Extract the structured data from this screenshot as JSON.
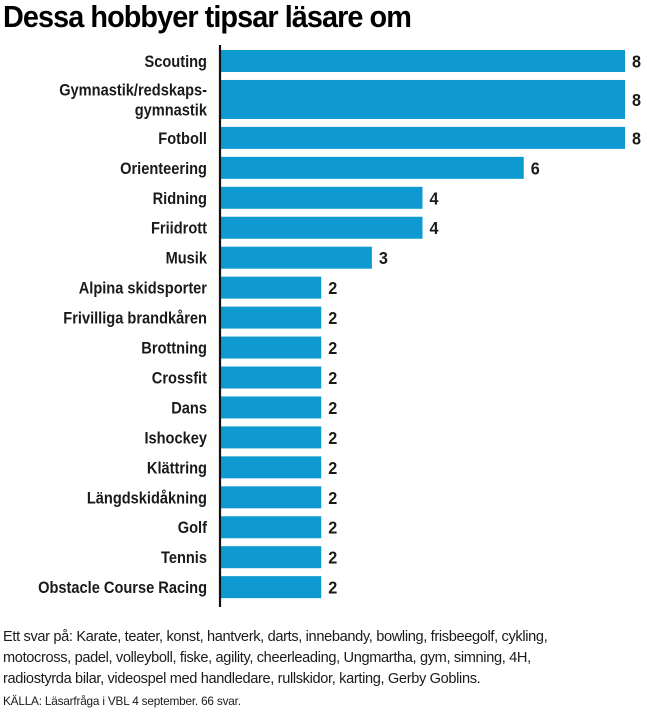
{
  "chart_data": {
    "type": "bar",
    "orientation": "horizontal",
    "title": "Dessa hobbyer tipsar läsare om",
    "xlabel": "",
    "ylabel": "",
    "xlim": [
      0,
      8
    ],
    "grid": false,
    "bar_color": "#0e9ad0",
    "categories": [
      [
        "Scouting"
      ],
      [
        "Gymnastik/redskaps-",
        "gymnastik"
      ],
      [
        "Fotboll"
      ],
      [
        "Orienteering"
      ],
      [
        "Ridning"
      ],
      [
        "Friidrott"
      ],
      [
        "Musik"
      ],
      [
        "Alpina skidsporter"
      ],
      [
        "Frivilliga brandkåren"
      ],
      [
        "Brottning"
      ],
      [
        "Crossfit"
      ],
      [
        "Dans"
      ],
      [
        "Ishockey"
      ],
      [
        "Klättring"
      ],
      [
        "Längdskidåkning"
      ],
      [
        "Golf"
      ],
      [
        "Tennis"
      ],
      [
        "Obstacle Course Racing"
      ]
    ],
    "values": [
      8,
      8,
      8,
      6,
      4,
      4,
      3,
      2,
      2,
      2,
      2,
      2,
      2,
      2,
      2,
      2,
      2,
      2
    ],
    "value_labels": [
      "8",
      "8",
      "8",
      "6",
      "4",
      "4",
      "3",
      "2",
      "2",
      "2",
      "2",
      "2",
      "2",
      "2",
      "2",
      "2",
      "2",
      "2"
    ]
  },
  "footer": {
    "notes": "Ett svar på: Karate, teater, konst, hantverk, darts, innebandy, bowling, frisbeegolf, cykling, motocross, padel, volleyboll, fiske, agility, cheerleading, Ungmartha, gym, simning, 4H, radiostyrda bilar, videospel med handledare, rullskidor, karting, Gerby Goblins.",
    "notes_lines": [
      "Ett svar på: Karate, teater, konst, hantverk, darts, innebandy, bowling, frisbeegolf, cykling,",
      "motocross, padel, volleyboll, fiske, agility, cheerleading, Ungmartha, gym, simning, 4H,",
      "radiostyrda bilar, videospel med handledare, rullskidor, karting, Gerby Goblins."
    ],
    "source": "KÄLLA: Läsarfråga i VBL 4 september. 66 svar."
  }
}
